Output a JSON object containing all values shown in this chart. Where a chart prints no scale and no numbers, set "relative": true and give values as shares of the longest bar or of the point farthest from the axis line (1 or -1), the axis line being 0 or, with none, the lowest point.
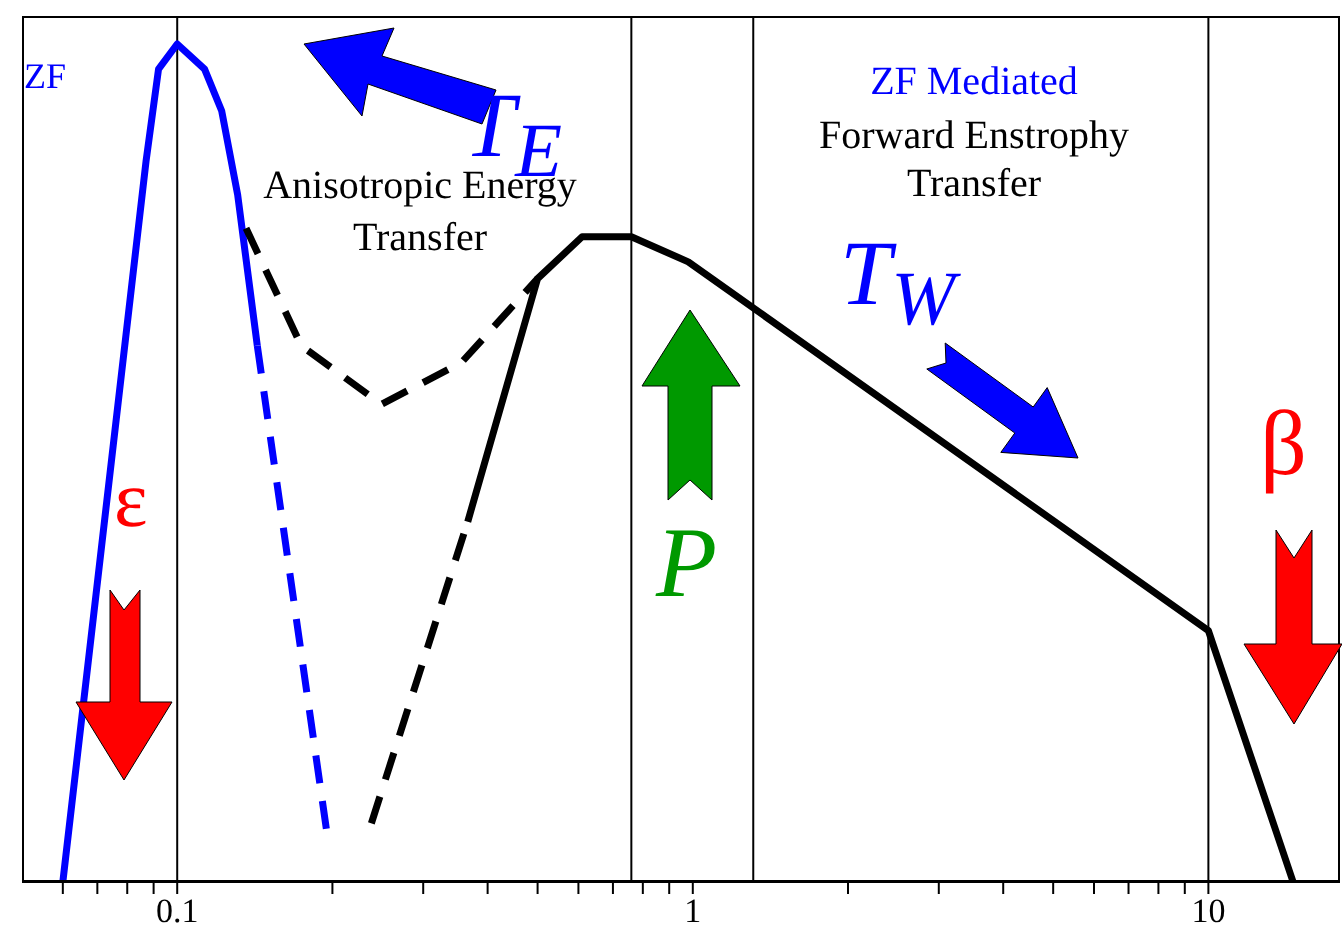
{
  "chart_data": {
    "type": "line",
    "relative": true,
    "log": "x",
    "tick_labels": "x",
    "marker": "none",
    "xlim": [
      0.05,
      18
    ],
    "xticks": [
      {
        "value": 0.06,
        "label": null
      },
      {
        "value": 0.07,
        "label": null
      },
      {
        "value": 0.08,
        "label": null
      },
      {
        "value": 0.09,
        "label": null
      },
      0.1,
      {
        "value": 0.2,
        "label": null
      },
      {
        "value": 0.3,
        "label": null
      },
      {
        "value": 0.4,
        "label": null
      },
      {
        "value": 0.5,
        "label": null
      },
      {
        "value": 0.6,
        "label": null
      },
      {
        "value": 0.7,
        "label": null
      },
      {
        "value": 0.8,
        "label": null
      },
      {
        "value": 0.9,
        "label": null
      },
      1,
      {
        "value": 2,
        "label": null
      },
      {
        "value": 3,
        "label": null
      },
      {
        "value": 4,
        "label": null
      },
      {
        "value": 5,
        "label": null
      },
      {
        "value": 6,
        "label": null
      },
      {
        "value": 7,
        "label": null
      },
      {
        "value": 8,
        "label": null
      },
      {
        "value": 9,
        "label": null
      },
      10
    ],
    "series": [
      {
        "color": "#0000ff",
        "line_style": "solid",
        "x": [
          0.06,
          0.087,
          0.092,
          0.1,
          0.113,
          0.122,
          0.131,
          0.143
        ],
        "values": [
          0,
          0.86,
          0.97,
          1,
          0.97,
          0.92,
          0.82,
          0.64
        ]
      },
      {
        "color": "#0000ff",
        "line_style": "dashed",
        "x": [
          0.143,
          0.195
        ],
        "values": [
          0.64,
          0.06
        ]
      },
      {
        "color": "#000000",
        "line_style": "dashed",
        "x": [
          0.136,
          0.174,
          0.249,
          0.356,
          0.5
        ],
        "values": [
          0.78,
          0.64,
          0.57,
          0.62,
          0.72
        ]
      },
      {
        "color": "#000000",
        "line_style": "dashed",
        "x": [
          0.238,
          0.366
        ],
        "values": [
          0.07,
          0.43
        ]
      },
      {
        "color": "#000000",
        "line_style": "solid",
        "x": [
          0.366,
          0.5,
          0.61,
          0.76,
          0.98,
          10,
          14.6
        ],
        "values": [
          0.43,
          0.72,
          0.77,
          0.77,
          0.74,
          0.3,
          0
        ]
      }
    ],
    "ref_lines": [
      {
        "axis": "x",
        "value": 0.1
      },
      {
        "axis": "x",
        "value": 0.76
      },
      {
        "axis": "x",
        "value": 1.31
      },
      {
        "axis": "x",
        "value": 10
      }
    ],
    "annotations": [
      "ZF",
      "T$_{E}$",
      "Anisotropic Energy Transfer",
      "ZF Mediated",
      "Forward Enstrophy Transfer",
      "T$_{W}$",
      "P",
      "ε",
      "β"
    ]
  }
}
